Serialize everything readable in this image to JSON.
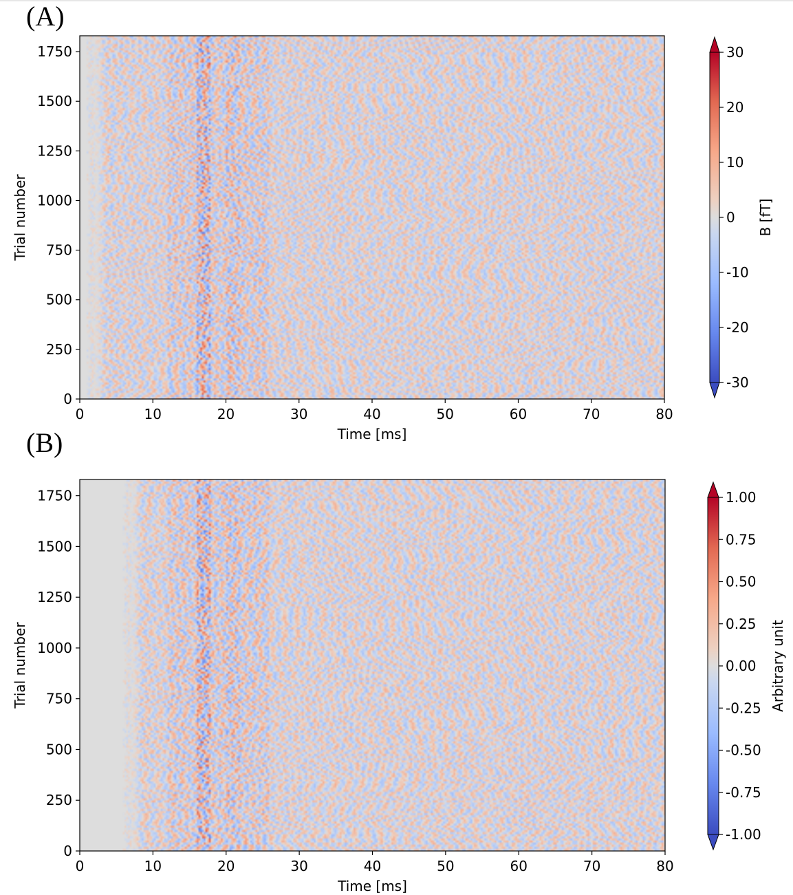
{
  "chart_data": [
    {
      "type": "heatmap",
      "panel_label": "(A)",
      "xlabel": "Time [ms]",
      "ylabel": "Trial number",
      "xlim": [
        0,
        80
      ],
      "ylim": [
        0,
        1830
      ],
      "x_ticks": [
        0,
        10,
        20,
        30,
        40,
        50,
        60,
        70,
        80
      ],
      "x_tick_labels": [
        "0",
        "10",
        "20",
        "30",
        "40",
        "50",
        "60",
        "70",
        "80"
      ],
      "y_ticks": [
        0,
        250,
        500,
        750,
        1000,
        1250,
        1500,
        1750
      ],
      "y_tick_labels": [
        "0",
        "250",
        "500",
        "750",
        "1000",
        "1250",
        "1500",
        "1750"
      ],
      "colormap": "coolwarm",
      "colorbar": {
        "label": "B [fT]",
        "range": [
          -30,
          30
        ],
        "ticks": [
          30,
          20,
          10,
          0,
          -10,
          -20,
          -30
        ],
        "tick_labels": [
          "30",
          "20",
          "10",
          "0",
          "-10",
          "-20",
          "-30"
        ],
        "extend": "both"
      },
      "features": {
        "blank_until_ms": 2,
        "strong_band_ms": [
          16,
          18
        ],
        "secondary_band_ms": [
          20,
          22
        ]
      }
    },
    {
      "type": "heatmap",
      "panel_label": "(B)",
      "xlabel": "Time [ms]",
      "ylabel": "Trial number",
      "xlim": [
        0,
        80
      ],
      "ylim": [
        0,
        1830
      ],
      "x_ticks": [
        0,
        10,
        20,
        30,
        40,
        50,
        60,
        70,
        80
      ],
      "x_tick_labels": [
        "0",
        "10",
        "20",
        "30",
        "40",
        "50",
        "60",
        "70",
        "80"
      ],
      "y_ticks": [
        0,
        250,
        500,
        750,
        1000,
        1250,
        1500,
        1750
      ],
      "y_tick_labels": [
        "0",
        "250",
        "500",
        "750",
        "1000",
        "1250",
        "1500",
        "1750"
      ],
      "colormap": "coolwarm",
      "colorbar": {
        "label": "Arbitrary unit",
        "range": [
          -1.0,
          1.0
        ],
        "ticks": [
          1.0,
          0.75,
          0.5,
          0.25,
          0.0,
          -0.25,
          -0.5,
          -0.75,
          -1.0
        ],
        "tick_labels": [
          "1.00",
          "0.75",
          "0.50",
          "0.25",
          "0.00",
          "-0.25",
          "-0.50",
          "-0.75",
          "-1.00"
        ],
        "extend": "both"
      },
      "features": {
        "blank_until_ms": 7,
        "strong_band_ms": [
          16,
          18
        ],
        "secondary_band_ms": [
          20,
          22
        ]
      }
    }
  ],
  "colors": {
    "cmap_low": "#3b4cc0",
    "cmap_mid": "#dddddd",
    "cmap_high": "#b40426",
    "blank_region": "#dcdcdc"
  }
}
